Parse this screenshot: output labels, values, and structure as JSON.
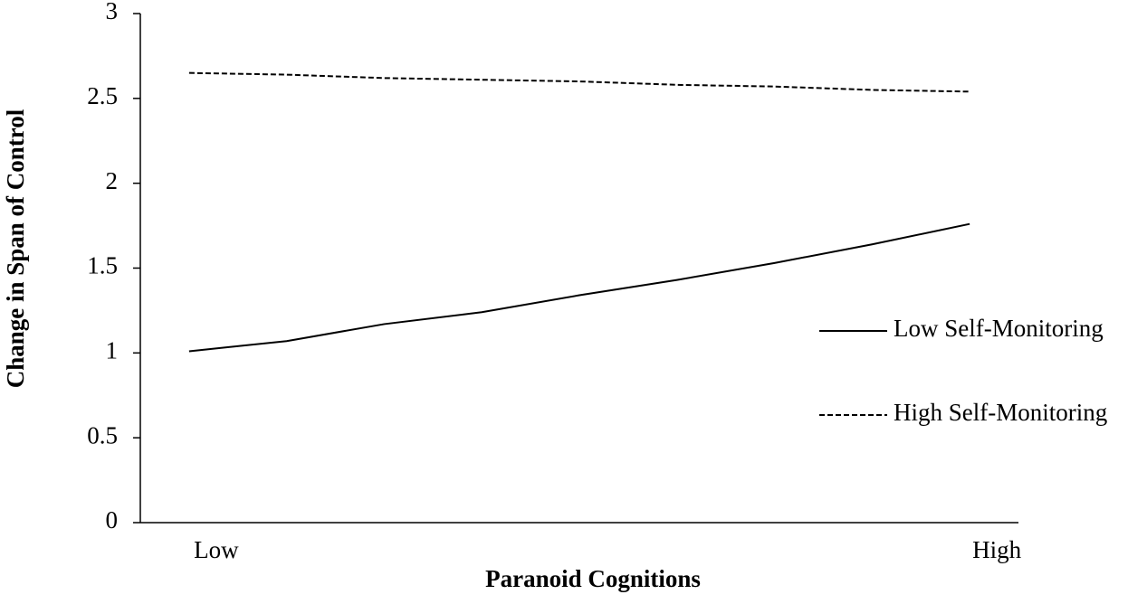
{
  "chart_data": {
    "type": "line",
    "x_label": "Paranoid Cognitions",
    "y_label": "Change in Span of Control",
    "categories": [
      "Low",
      null,
      null,
      null,
      null,
      null,
      null,
      null,
      "High"
    ],
    "series": [
      {
        "name": "Low Self-Monitoring",
        "color": "#000000",
        "dash": "solid",
        "values": [
          1.01,
          1.07,
          1.17,
          1.24,
          1.34,
          1.43,
          1.53,
          1.64,
          1.76
        ]
      },
      {
        "name": "High Self-Monitoring",
        "color": "#000000",
        "dash": "dashed",
        "values": [
          2.65,
          2.64,
          2.62,
          2.61,
          2.6,
          2.58,
          2.57,
          2.55,
          2.54
        ]
      }
    ],
    "ylim": [
      0,
      3
    ],
    "yticks": [
      0,
      0.5,
      1,
      1.5,
      2,
      2.5,
      3
    ],
    "grid": false,
    "legend": "right"
  }
}
